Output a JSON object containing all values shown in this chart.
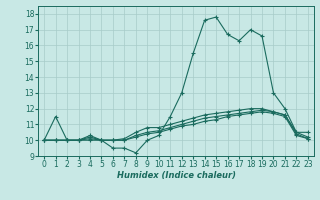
{
  "title": "",
  "xlabel": "Humidex (Indice chaleur)",
  "ylabel": "",
  "xlim": [
    -0.5,
    23.5
  ],
  "ylim": [
    9,
    18.5
  ],
  "xticks": [
    0,
    1,
    2,
    3,
    4,
    5,
    6,
    7,
    8,
    9,
    10,
    11,
    12,
    13,
    14,
    15,
    16,
    17,
    18,
    19,
    20,
    21,
    22,
    23
  ],
  "yticks": [
    9,
    10,
    11,
    12,
    13,
    14,
    15,
    16,
    17,
    18
  ],
  "bg_color": "#c8e8e5",
  "grid_color": "#a8ccc9",
  "line_color": "#1a6b5e",
  "lines": [
    [
      10,
      11.5,
      10,
      10,
      10.3,
      10,
      9.5,
      9.5,
      9.2,
      10,
      10.3,
      11.5,
      13.0,
      15.5,
      17.6,
      17.8,
      16.7,
      16.3,
      17.0,
      16.6,
      13.0,
      12.0,
      10.5,
      10.5
    ],
    [
      10,
      10,
      10,
      10,
      10.2,
      10,
      10,
      10.1,
      10.5,
      10.8,
      10.8,
      11.0,
      11.2,
      11.4,
      11.6,
      11.7,
      11.8,
      11.9,
      12.0,
      12.0,
      11.8,
      11.6,
      10.5,
      10.2
    ],
    [
      10,
      10,
      10,
      10,
      10.1,
      10,
      10,
      10,
      10.3,
      10.5,
      10.6,
      10.8,
      11.0,
      11.2,
      11.4,
      11.5,
      11.6,
      11.7,
      11.8,
      11.9,
      11.8,
      11.6,
      10.4,
      10.1
    ],
    [
      10,
      10,
      10,
      10,
      10,
      10,
      10,
      10,
      10.2,
      10.4,
      10.5,
      10.7,
      10.9,
      11.0,
      11.2,
      11.3,
      11.5,
      11.6,
      11.7,
      11.8,
      11.7,
      11.5,
      10.3,
      10.1
    ]
  ],
  "tick_fontsize": 5.5,
  "xlabel_fontsize": 6.0,
  "line_width": 0.8,
  "marker_size": 2.5
}
